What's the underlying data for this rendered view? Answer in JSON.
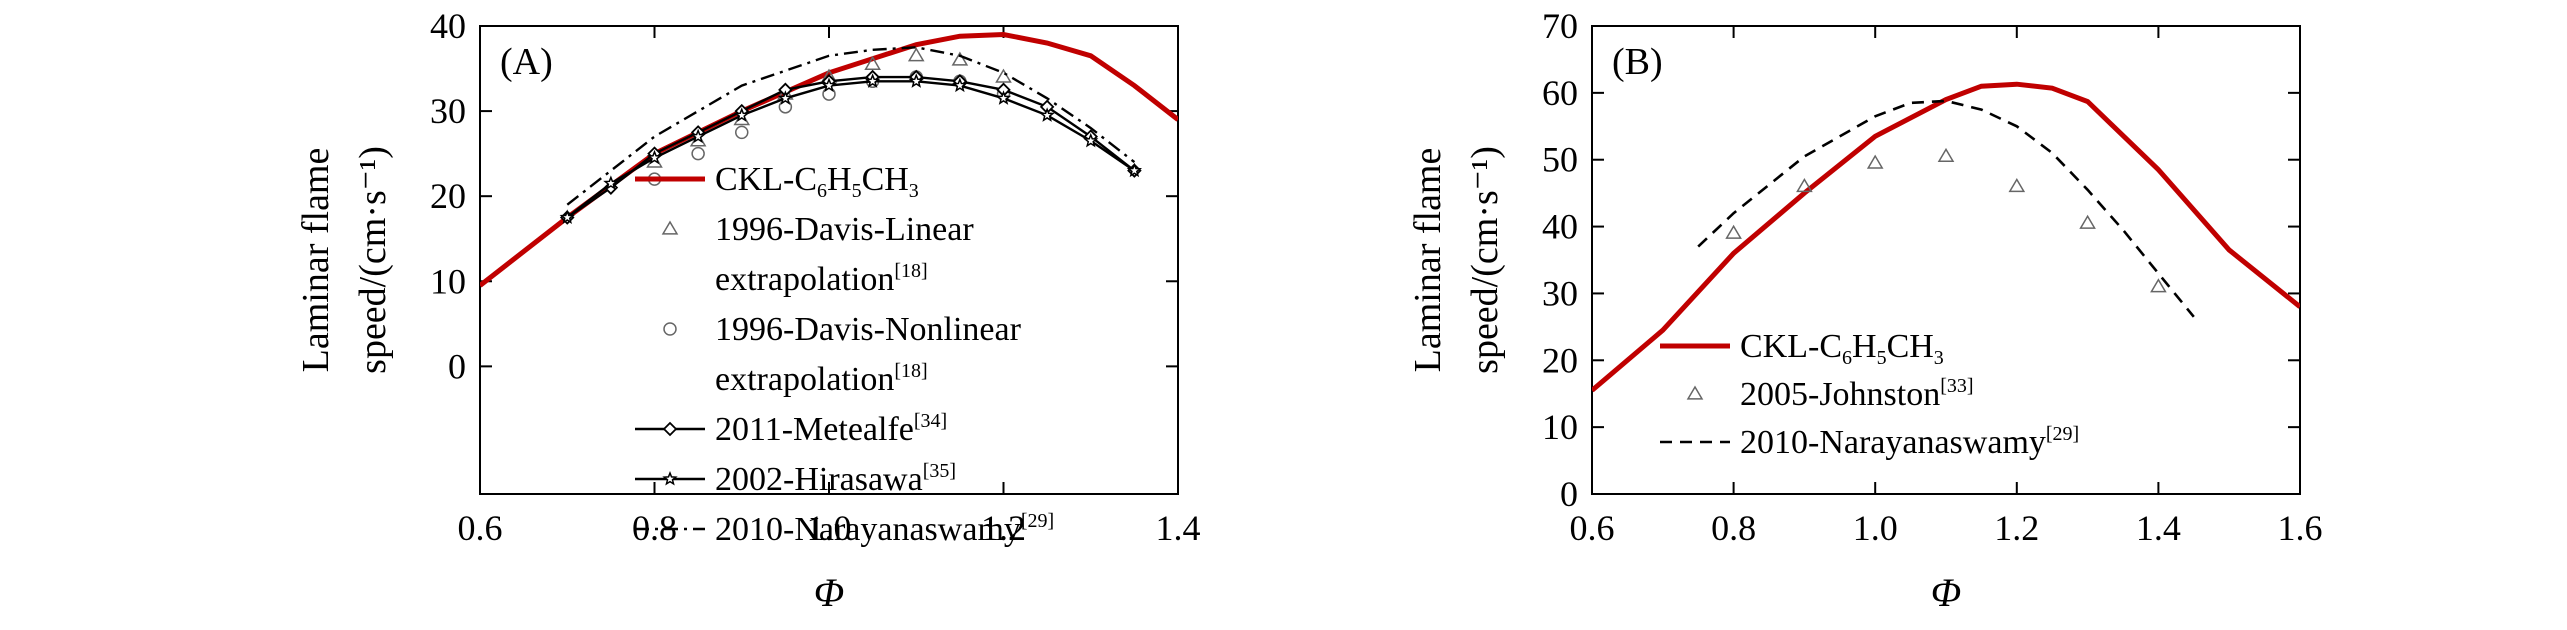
{
  "chart_data": [
    {
      "type": "line",
      "panel_label": "(A)",
      "xlabel": "Φ",
      "ylabel_line1": "Laminar flame",
      "ylabel_line2": "speed/(cm·s⁻¹)",
      "xlim": [
        0.6,
        1.4
      ],
      "ylim": [
        -15,
        40
      ],
      "x_ticks": [
        "0.6",
        "0.8",
        "1.0",
        "1.2",
        "1.4"
      ],
      "y_ticks": [
        "0",
        "10",
        "20",
        "30",
        "40"
      ],
      "legend_position": "lower-right",
      "series": [
        {
          "name": "CKL-C6H5CH3",
          "legend_main": "CKL-C",
          "legend_parts": [
            [
              "CKL-C",
              ""
            ],
            [
              "6",
              "sub"
            ],
            [
              "H",
              ""
            ],
            [
              "5",
              "sub"
            ],
            [
              "CH",
              ""
            ],
            [
              "3",
              "sub"
            ]
          ],
          "style": "line",
          "color": "#c00000",
          "x": [
            0.6,
            0.7,
            0.8,
            0.9,
            1.0,
            1.1,
            1.15,
            1.2,
            1.25,
            1.3,
            1.35,
            1.4
          ],
          "y": [
            9.5,
            17.5,
            25.0,
            30.0,
            34.5,
            37.8,
            38.8,
            39.0,
            38.0,
            36.5,
            33.0,
            29.0
          ]
        },
        {
          "name": "1996-Davis-Linear extrapolation[18]",
          "legend_parts": [
            [
              "1996-Davis-Linear",
              ""
            ]
          ],
          "legend_line2_parts": [
            [
              "extrapolation",
              ""
            ],
            [
              "[18]",
              "sup"
            ]
          ],
          "style": "triangle-markers",
          "color": "#666666",
          "x": [
            0.8,
            0.85,
            0.9,
            0.95,
            1.0,
            1.05,
            1.1,
            1.15,
            1.2
          ],
          "y": [
            24.0,
            26.5,
            29.0,
            32.0,
            34.0,
            35.5,
            36.5,
            36.0,
            34.0
          ]
        },
        {
          "name": "1996-Davis-Nonlinear extrapolation[18]",
          "legend_parts": [
            [
              "1996-Davis-Nonlinear",
              ""
            ]
          ],
          "legend_line2_parts": [
            [
              "extrapolation",
              ""
            ],
            [
              "[18]",
              "sup"
            ]
          ],
          "style": "circle-markers",
          "color": "#666666",
          "x": [
            0.8,
            0.85,
            0.9,
            0.95,
            1.0,
            1.05,
            1.1,
            1.15,
            1.2
          ],
          "y": [
            22.0,
            25.0,
            27.5,
            30.5,
            32.0,
            33.5,
            34.0,
            33.5,
            32.0
          ]
        },
        {
          "name": "2011-Metealfe[34]",
          "legend_parts": [
            [
              "2011-Metealfe",
              ""
            ],
            [
              "[34]",
              "sup"
            ]
          ],
          "style": "line-diamond",
          "color": "#000000",
          "x": [
            0.7,
            0.75,
            0.8,
            0.85,
            0.9,
            0.95,
            1.0,
            1.05,
            1.1,
            1.15,
            1.2,
            1.25,
            1.3,
            1.35
          ],
          "y": [
            17.5,
            21.0,
            25.0,
            27.5,
            30.0,
            32.5,
            33.5,
            34.0,
            34.0,
            33.5,
            32.5,
            30.5,
            27.0,
            23.0
          ]
        },
        {
          "name": "2002-Hirasawa[35]",
          "legend_parts": [
            [
              "2002-Hirasawa",
              ""
            ],
            [
              "[35]",
              "sup"
            ]
          ],
          "style": "line-star",
          "color": "#000000",
          "x": [
            0.7,
            0.75,
            0.8,
            0.85,
            0.9,
            0.95,
            1.0,
            1.05,
            1.1,
            1.15,
            1.2,
            1.25,
            1.3,
            1.35
          ],
          "y": [
            17.5,
            21.5,
            24.5,
            27.0,
            29.5,
            31.5,
            33.0,
            33.5,
            33.5,
            33.0,
            31.5,
            29.5,
            26.5,
            23.0
          ]
        },
        {
          "name": "2010-Narayanaswamy[29]",
          "legend_parts": [
            [
              "2010-Narayanaswamy",
              ""
            ],
            [
              "[29]",
              "sup"
            ]
          ],
          "style": "dashdot",
          "color": "#000000",
          "x": [
            0.7,
            0.8,
            0.9,
            1.0,
            1.05,
            1.1,
            1.15,
            1.2,
            1.25,
            1.3,
            1.35
          ],
          "y": [
            19.0,
            27.0,
            33.0,
            36.5,
            37.2,
            37.5,
            36.5,
            34.5,
            31.5,
            28.0,
            24.0
          ]
        }
      ]
    },
    {
      "type": "line",
      "panel_label": "(B)",
      "xlabel": "Φ",
      "ylabel_line1": "Laminar flame",
      "ylabel_line2": "speed/(cm·s⁻¹)",
      "xlim": [
        0.6,
        1.6
      ],
      "ylim": [
        0,
        70
      ],
      "x_ticks": [
        "0.6",
        "0.8",
        "1.0",
        "1.2",
        "1.4",
        "1.6"
      ],
      "y_ticks": [
        "0",
        "10",
        "20",
        "30",
        "40",
        "50",
        "60",
        "70"
      ],
      "legend_position": "lower-left",
      "series": [
        {
          "name": "CKL-C6H5CH3",
          "legend_parts": [
            [
              "CKL-C",
              ""
            ],
            [
              "6",
              "sub"
            ],
            [
              "H",
              ""
            ],
            [
              "5",
              "sub"
            ],
            [
              "CH",
              ""
            ],
            [
              "3",
              "sub"
            ]
          ],
          "style": "line",
          "color": "#c00000",
          "x": [
            0.6,
            0.7,
            0.8,
            0.9,
            1.0,
            1.1,
            1.15,
            1.2,
            1.25,
            1.3,
            1.4,
            1.5,
            1.6
          ],
          "y": [
            15.5,
            24.5,
            36.0,
            45.0,
            53.5,
            59.0,
            61.0,
            61.3,
            60.7,
            58.7,
            48.5,
            36.5,
            28.0
          ]
        },
        {
          "name": "2005-Johnston[33]",
          "legend_parts": [
            [
              "2005-Johnston",
              ""
            ],
            [
              "[33]",
              "sup"
            ]
          ],
          "style": "triangle-markers",
          "color": "#666666",
          "x": [
            0.8,
            0.9,
            1.0,
            1.1,
            1.2,
            1.3,
            1.4
          ],
          "y": [
            39.0,
            46.0,
            49.5,
            50.5,
            46.0,
            40.5,
            31.0
          ]
        },
        {
          "name": "2010-Narayanaswamy[29]",
          "legend_parts": [
            [
              "2010-Narayanaswamy",
              ""
            ],
            [
              "[29]",
              "sup"
            ]
          ],
          "style": "dashed",
          "color": "#000000",
          "x": [
            0.75,
            0.8,
            0.9,
            1.0,
            1.05,
            1.1,
            1.15,
            1.2,
            1.25,
            1.3,
            1.35,
            1.4,
            1.45
          ],
          "y": [
            37.0,
            42.0,
            50.5,
            56.5,
            58.5,
            58.8,
            57.5,
            55.0,
            51.0,
            45.5,
            39.5,
            33.0,
            26.5
          ]
        }
      ]
    }
  ]
}
